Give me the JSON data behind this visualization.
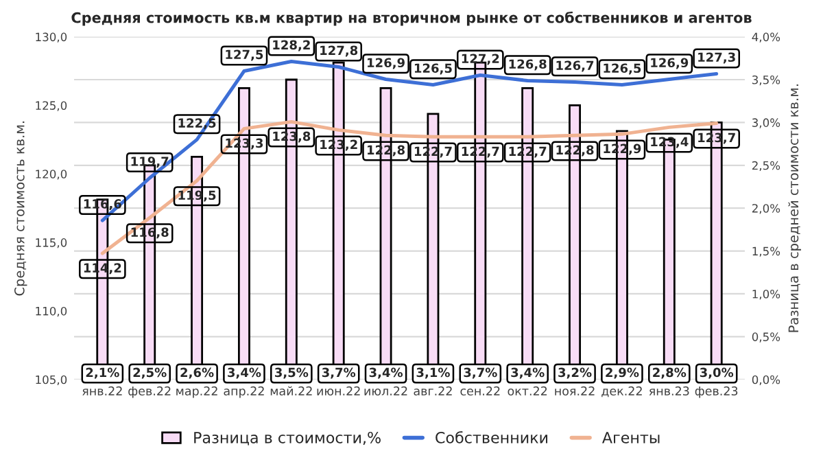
{
  "chart_data": {
    "type": "bar",
    "title": "Средняя стоимость кв.м квартир на вторичном рынке от собственников и агентов",
    "ylabel": "Средняя стоимость кв.м.",
    "y2label": "Разница в средней стоимости кв.м.",
    "categories": [
      "янв.22",
      "фев.22",
      "мар.22",
      "апр.22",
      "май.22",
      "июн.22",
      "июл.22",
      "авг.22",
      "сен.22",
      "окт.22",
      "ноя.22",
      "дек.22",
      "янв.23",
      "фев.23"
    ],
    "series": [
      {
        "name": "Разница в стоимости,%",
        "axis": "y2",
        "color": "#f8dcf6",
        "values": [
          2.1,
          2.5,
          2.6,
          3.4,
          3.5,
          3.7,
          3.4,
          3.1,
          3.7,
          3.4,
          3.2,
          2.9,
          2.8,
          3.0
        ],
        "value_labels": [
          "2,1%",
          "2,5%",
          "2,6%",
          "3,4%",
          "3,5%",
          "3,7%",
          "3,4%",
          "3,1%",
          "3,7%",
          "3,4%",
          "3,2%",
          "2,9%",
          "2,8%",
          "3,0%"
        ]
      },
      {
        "name": "Собственники",
        "type": "line",
        "color": "#3d6fd6",
        "values": [
          116.6,
          119.7,
          122.5,
          127.5,
          128.2,
          127.8,
          126.9,
          126.5,
          127.2,
          126.8,
          126.7,
          126.5,
          126.9,
          127.3
        ],
        "value_labels": [
          "116,6",
          "119,7",
          "122,5",
          "127,5",
          "128,2",
          "127,8",
          "126,9",
          "126,5",
          "127,2",
          "126,8",
          "126,7",
          "126,5",
          "126,9",
          "127,3"
        ]
      },
      {
        "name": "Агенты",
        "type": "line",
        "color": "#f0b291",
        "values": [
          114.2,
          116.8,
          119.5,
          123.3,
          123.8,
          123.2,
          122.8,
          122.7,
          122.7,
          122.7,
          122.8,
          122.9,
          123.4,
          123.7
        ],
        "value_labels": [
          "114,2",
          "116,8",
          "119,5",
          "123,3",
          "123,8",
          "123,2",
          "122,8",
          "122,7",
          "122,7",
          "122,7",
          "122,8",
          "122,9",
          "123,4",
          "123,7"
        ]
      }
    ],
    "ylim": [
      105,
      130
    ],
    "yticks": [
      {
        "value": 105,
        "label": "105,0"
      },
      {
        "value": 110,
        "label": "110,0"
      },
      {
        "value": 115,
        "label": "115,0"
      },
      {
        "value": 120,
        "label": "120,0"
      },
      {
        "value": 125,
        "label": "125,0"
      },
      {
        "value": 130,
        "label": "130,0"
      }
    ],
    "y2lim": [
      0,
      4
    ],
    "y2ticks": [
      {
        "value": 0,
        "label": "0,0%"
      },
      {
        "value": 0.5,
        "label": "0,5%"
      },
      {
        "value": 1,
        "label": "1,0%"
      },
      {
        "value": 1.5,
        "label": "1,5%"
      },
      {
        "value": 2,
        "label": "2,0%"
      },
      {
        "value": 2.5,
        "label": "2,5%"
      },
      {
        "value": 3,
        "label": "3,0%"
      },
      {
        "value": 3.5,
        "label": "3,5%"
      },
      {
        "value": 4,
        "label": "4,0%"
      }
    ],
    "grid": "y",
    "legend": "bottom",
    "marker": "none",
    "line_style": "solid"
  }
}
